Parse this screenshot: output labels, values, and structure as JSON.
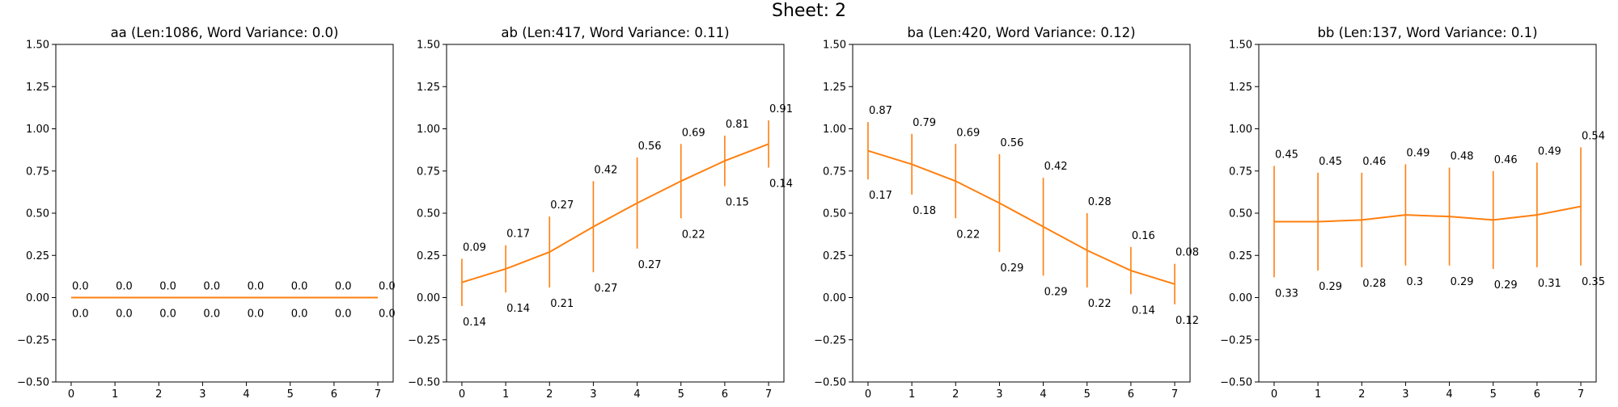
{
  "figure": {
    "suptitle": "Sheet: 2"
  },
  "colors": {
    "series": "#ff7f0e",
    "axis": "#000000",
    "background": "#ffffff"
  },
  "chart_data": [
    {
      "type": "line",
      "error_bars": true,
      "title": "aa (Len:1086, Word Variance: 0.0)",
      "xlabel": "",
      "ylabel": "",
      "x": [
        0,
        1,
        2,
        3,
        4,
        5,
        6,
        7
      ],
      "x_ticks": [
        "0",
        "1",
        "2",
        "3",
        "4",
        "5",
        "6",
        "7"
      ],
      "y_ticks": [
        "1.50",
        "1.25",
        "1.00",
        "0.75",
        "0.50",
        "0.25",
        "0.00",
        "−0.25",
        "−0.50"
      ],
      "ylim": [
        -0.5,
        1.5
      ],
      "xlim": [
        -0.35,
        7.35
      ],
      "grid": false,
      "values": [
        0.0,
        0.0,
        0.0,
        0.0,
        0.0,
        0.0,
        0.0,
        0.0
      ],
      "errors": [
        0.0,
        0.0,
        0.0,
        0.0,
        0.0,
        0.0,
        0.0,
        0.0
      ],
      "value_labels": [
        "0.0",
        "0.0",
        "0.0",
        "0.0",
        "0.0",
        "0.0",
        "0.0",
        "0.0"
      ],
      "error_labels": [
        "0.0",
        "0.0",
        "0.0",
        "0.0",
        "0.0",
        "0.0",
        "0.0",
        "0.0"
      ]
    },
    {
      "type": "line",
      "error_bars": true,
      "title": "ab (Len:417, Word Variance: 0.11)",
      "xlabel": "",
      "ylabel": "",
      "x": [
        0,
        1,
        2,
        3,
        4,
        5,
        6,
        7
      ],
      "x_ticks": [
        "0",
        "1",
        "2",
        "3",
        "4",
        "5",
        "6",
        "7"
      ],
      "y_ticks": [
        "1.50",
        "1.25",
        "1.00",
        "0.75",
        "0.50",
        "0.25",
        "0.00",
        "−0.25",
        "−0.50"
      ],
      "ylim": [
        -0.5,
        1.5
      ],
      "xlim": [
        -0.35,
        7.35
      ],
      "grid": false,
      "values": [
        0.09,
        0.17,
        0.27,
        0.42,
        0.56,
        0.69,
        0.81,
        0.91
      ],
      "errors": [
        0.14,
        0.14,
        0.21,
        0.27,
        0.27,
        0.22,
        0.15,
        0.14
      ],
      "value_labels": [
        "0.09",
        "0.17",
        "0.27",
        "0.42",
        "0.56",
        "0.69",
        "0.81",
        "0.91"
      ],
      "error_labels": [
        "0.14",
        "0.14",
        "0.21",
        "0.27",
        "0.27",
        "0.22",
        "0.15",
        "0.14"
      ]
    },
    {
      "type": "line",
      "error_bars": true,
      "title": "ba (Len:420, Word Variance: 0.12)",
      "xlabel": "",
      "ylabel": "",
      "x": [
        0,
        1,
        2,
        3,
        4,
        5,
        6,
        7
      ],
      "x_ticks": [
        "0",
        "1",
        "2",
        "3",
        "4",
        "5",
        "6",
        "7"
      ],
      "y_ticks": [
        "1.50",
        "1.25",
        "1.00",
        "0.75",
        "0.50",
        "0.25",
        "0.00",
        "−0.25",
        "−0.50"
      ],
      "ylim": [
        -0.5,
        1.5
      ],
      "xlim": [
        -0.35,
        7.35
      ],
      "grid": false,
      "values": [
        0.87,
        0.79,
        0.69,
        0.56,
        0.42,
        0.28,
        0.16,
        0.08
      ],
      "errors": [
        0.17,
        0.18,
        0.22,
        0.29,
        0.29,
        0.22,
        0.14,
        0.12
      ],
      "value_labels": [
        "0.87",
        "0.79",
        "0.69",
        "0.56",
        "0.42",
        "0.28",
        "0.16",
        "0.08"
      ],
      "error_labels": [
        "0.17",
        "0.18",
        "0.22",
        "0.29",
        "0.29",
        "0.22",
        "0.14",
        "0.12"
      ]
    },
    {
      "type": "line",
      "error_bars": true,
      "title": "bb (Len:137, Word Variance: 0.1)",
      "xlabel": "",
      "ylabel": "",
      "x": [
        0,
        1,
        2,
        3,
        4,
        5,
        6,
        7
      ],
      "x_ticks": [
        "0",
        "1",
        "2",
        "3",
        "4",
        "5",
        "6",
        "7"
      ],
      "y_ticks": [
        "1.50",
        "1.25",
        "1.00",
        "0.75",
        "0.50",
        "0.25",
        "0.00",
        "−0.25",
        "−0.50"
      ],
      "ylim": [
        -0.5,
        1.5
      ],
      "xlim": [
        -0.35,
        7.35
      ],
      "grid": false,
      "values": [
        0.45,
        0.45,
        0.46,
        0.49,
        0.48,
        0.46,
        0.49,
        0.54
      ],
      "errors": [
        0.33,
        0.29,
        0.28,
        0.3,
        0.29,
        0.29,
        0.31,
        0.35
      ],
      "value_labels": [
        "0.45",
        "0.45",
        "0.46",
        "0.49",
        "0.48",
        "0.46",
        "0.49",
        "0.54"
      ],
      "error_labels": [
        "0.33",
        "0.29",
        "0.28",
        "0.3",
        "0.29",
        "0.29",
        "0.31",
        "0.35"
      ]
    }
  ]
}
